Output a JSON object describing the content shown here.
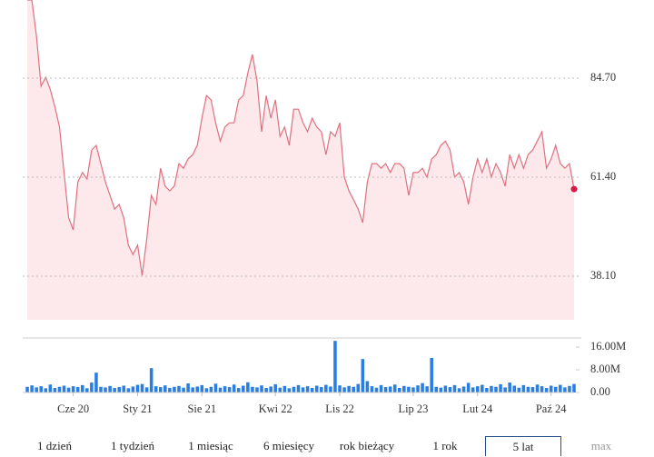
{
  "chart_data": {
    "type": "line",
    "x": [
      0,
      0.5,
      1,
      1.5,
      2,
      2.5,
      3,
      3.5,
      4,
      4.5,
      5,
      5.5,
      6,
      6.5,
      7,
      7.5,
      8,
      8.5,
      9,
      9.5,
      10,
      10.5,
      11,
      11.5,
      12,
      12.5,
      13,
      13.5,
      14,
      14.5,
      15,
      15.5,
      16,
      16.5,
      17,
      17.5,
      18,
      18.5,
      19,
      19.5,
      20,
      20.5,
      21,
      21.5,
      22,
      22.5,
      23,
      23.5,
      24,
      24.5,
      25,
      25.5,
      26,
      26.5,
      27,
      27.5,
      28,
      28.5,
      29,
      29.5,
      30,
      30.5,
      31,
      31.5,
      32,
      32.5,
      33,
      33.5,
      34,
      34.5,
      35,
      35.5,
      36,
      36.5,
      37,
      37.5,
      38,
      38.5,
      39,
      39.5,
      40,
      40.5,
      41,
      41.5,
      42,
      42.5,
      43,
      43.5,
      44,
      44.5,
      45,
      45.5,
      46,
      46.5,
      47,
      47.5,
      48,
      48.5,
      49,
      49.5,
      50,
      50.5,
      51,
      51.5,
      52,
      52.5,
      53,
      53.5,
      54,
      54.5,
      55,
      55.5,
      56,
      56.5,
      57,
      57.5,
      58,
      58.5,
      59,
      59.5
    ],
    "xlim": [
      -0.5,
      59.5
    ],
    "xticks": [
      {
        "value": 5,
        "label": "Cze 20"
      },
      {
        "value": 12,
        "label": "Sty 21"
      },
      {
        "value": 19,
        "label": "Sie 21"
      },
      {
        "value": 27,
        "label": "Kwi 22"
      },
      {
        "value": 34,
        "label": "Lis 22"
      },
      {
        "value": 42,
        "label": "Lip 23"
      },
      {
        "value": 49,
        "label": "Lut 24"
      },
      {
        "value": 57,
        "label": "Paź 24"
      }
    ],
    "ylim": [
      27.84,
      103.1
    ],
    "yticks": [
      {
        "value": 38.1,
        "label": "38.10"
      },
      {
        "value": 61.4,
        "label": "61.40"
      },
      {
        "value": 84.7,
        "label": "84.70"
      }
    ],
    "grid": true,
    "y2lim": [
      0,
      18.9
    ],
    "y2ticks": [
      {
        "value": 0,
        "label": "0.00"
      },
      {
        "value": 8,
        "label": "8.00M"
      },
      {
        "value": 16,
        "label": "16.00M"
      }
    ],
    "series": [
      {
        "color": "#e0707f",
        "fill": "#fde9eb",
        "values": [
          103.1,
          103.1,
          94.5,
          82.8,
          84.9,
          82.0,
          78.0,
          73.2,
          62.5,
          51.8,
          49.0,
          60.3,
          62.5,
          61.0,
          67.8,
          68.9,
          64.6,
          60.3,
          57.1,
          53.9,
          55.0,
          51.8,
          45.4,
          43.2,
          45.4,
          38.3,
          47.0,
          57.1,
          55.0,
          63.5,
          59.3,
          58.2,
          59.3,
          64.6,
          63.5,
          65.7,
          66.7,
          68.9,
          75.3,
          80.6,
          79.6,
          74.2,
          69.9,
          73.2,
          74.2,
          74.2,
          79.6,
          80.6,
          86.0,
          90.3,
          84.0,
          72.1,
          80.6,
          75.3,
          79.6,
          71.0,
          73.2,
          68.9,
          77.4,
          77.4,
          74.2,
          72.1,
          75.3,
          73.2,
          72.1,
          66.7,
          72.1,
          71.0,
          74.2,
          61.4,
          58.2,
          56.1,
          53.9,
          50.7,
          60.3,
          64.6,
          64.6,
          63.5,
          64.6,
          62.5,
          64.6,
          64.6,
          63.5,
          57.1,
          62.5,
          62.5,
          63.5,
          61.4,
          65.7,
          66.7,
          68.9,
          69.9,
          67.8,
          61.4,
          62.5,
          60.3,
          55.0,
          61.4,
          65.7,
          62.5,
          65.7,
          61.4,
          64.6,
          62.5,
          59.3,
          66.7,
          63.5,
          66.7,
          63.5,
          66.7,
          67.8,
          69.9,
          72.1,
          63.5,
          65.7,
          68.9,
          64.6,
          63.5,
          64.6,
          58.6
        ]
      },
      {
        "type": "bar",
        "axis": "y2",
        "color": "#2a7de1",
        "values": [
          2.0,
          2.5,
          1.8,
          2.2,
          1.5,
          2.8,
          1.6,
          2.0,
          2.4,
          1.7,
          2.2,
          1.9,
          2.6,
          1.5,
          3.5,
          7.0,
          2.0,
          1.8,
          2.3,
          1.6,
          1.9,
          2.4,
          1.5,
          2.1,
          2.7,
          3.0,
          1.8,
          8.6,
          2.2,
          1.9,
          2.5,
          1.6,
          2.0,
          2.3,
          1.7,
          3.2,
          1.8,
          2.1,
          2.6,
          1.5,
          2.0,
          3.1,
          1.7,
          2.2,
          1.9,
          2.8,
          1.6,
          2.4,
          3.6,
          2.0,
          1.8,
          2.5,
          1.6,
          2.1,
          2.9,
          1.7,
          2.3,
          1.5,
          2.0,
          2.6,
          1.8,
          2.2,
          1.6,
          2.4,
          1.9,
          2.7,
          2.1,
          18.2,
          2.5,
          1.8,
          2.3,
          2.0,
          3.0,
          11.8,
          4.0,
          2.2,
          1.7,
          2.6,
          1.9,
          2.1,
          2.8,
          1.6,
          2.3,
          2.0,
          1.8,
          2.5,
          3.3,
          2.2,
          12.2,
          2.0,
          1.7,
          2.4,
          1.9,
          2.6,
          1.5,
          2.1,
          3.4,
          1.8,
          2.2,
          2.7,
          1.6,
          2.3,
          2.0,
          2.9,
          1.8,
          3.5,
          2.4,
          1.7,
          2.6,
          2.0,
          1.9,
          2.8,
          2.2,
          1.6,
          2.4,
          2.0,
          2.7,
          1.8,
          2.3,
          3.0
        ]
      }
    ]
  },
  "buttons": [
    "1 dzień",
    "1 tydzień",
    "1 miesiąc",
    "6 miesięcy",
    "rok bieżący",
    "1 rok",
    "5 lat",
    "max"
  ],
  "selected": 6
}
